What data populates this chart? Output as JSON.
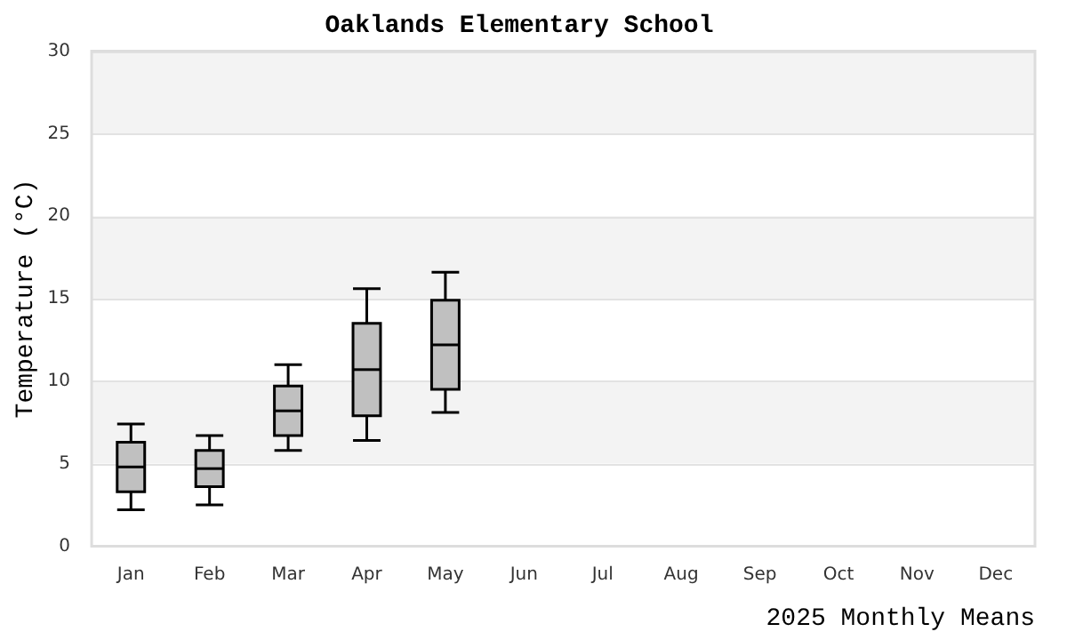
{
  "chart_data": {
    "type": "box",
    "title": "Oaklands Elementary School",
    "xlabel": "2025 Monthly Means",
    "ylabel": "Temperature (°C)",
    "categories": [
      "Jan",
      "Feb",
      "Mar",
      "Apr",
      "May",
      "Jun",
      "Jul",
      "Aug",
      "Sep",
      "Oct",
      "Nov",
      "Dec"
    ],
    "boxes": [
      {
        "low": 2.2,
        "q1": 3.3,
        "median": 4.8,
        "q3": 6.3,
        "high": 7.4
      },
      {
        "low": 2.5,
        "q1": 3.6,
        "median": 4.7,
        "q3": 5.8,
        "high": 6.7
      },
      {
        "low": 5.8,
        "q1": 6.7,
        "median": 8.2,
        "q3": 9.7,
        "high": 11.0
      },
      {
        "low": 6.4,
        "q1": 7.9,
        "median": 10.7,
        "q3": 13.5,
        "high": 15.6
      },
      {
        "low": 8.1,
        "q1": 9.5,
        "median": 12.2,
        "q3": 14.9,
        "high": 16.6
      },
      null,
      null,
      null,
      null,
      null,
      null,
      null
    ],
    "color": "#c0c0c0",
    "ylim": [
      0,
      30
    ],
    "yticks": [
      0,
      5,
      10,
      15,
      20,
      25,
      30
    ],
    "grid": "y"
  }
}
